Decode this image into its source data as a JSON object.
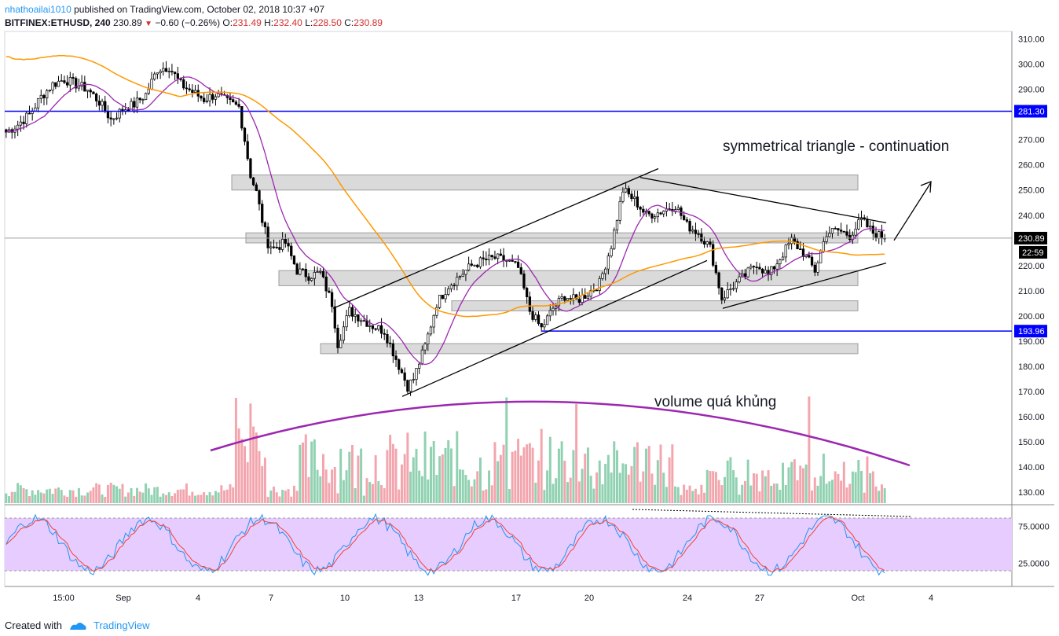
{
  "header": {
    "author": "nhathoailai1010",
    "published": "published on TradingView.com, October 02, 2018 10:37 +07",
    "symbol": "BITFINEX:ETHUSD, 240",
    "last": "230.89",
    "change": "−0.60 (−0.26%)",
    "o_label": "O:",
    "o": "231.49",
    "h_label": "H:",
    "h": "232.40",
    "l_label": "L:",
    "l": "228.50",
    "c_label": "C:",
    "c": "230.89"
  },
  "annotations": {
    "pattern": "symmetrical triangle - continuation",
    "volume_note": "volume quá khủng"
  },
  "footer": {
    "created_with": "Created with",
    "brand": "TradingView"
  },
  "colors": {
    "bull": "#ffffff",
    "bear": "#000000",
    "ma_fast": "#9c27b0",
    "ma_slow": "#ff9800",
    "level": "#0000ff",
    "zone": "#d3d3d3",
    "vol_up": "#8fd1b0",
    "vol_down": "#f3a5ad",
    "rsi_band": "#e6ccff",
    "k_line": "#2196f3",
    "d_line": "#f44336"
  },
  "chart_data": {
    "type": "candlestick",
    "timeframe": "240",
    "y_ticks": [
      "310.00",
      "300.00",
      "290.00",
      "280.00",
      "270.00",
      "260.00",
      "250.00",
      "240.00",
      "230.00",
      "220.00",
      "210.00",
      "200.00",
      "190.00",
      "180.00",
      "170.00",
      "160.00",
      "150.00",
      "140.00",
      "130.00"
    ],
    "y_range": [
      125,
      313
    ],
    "x_ticks": [
      "15:00",
      "Sep",
      "4",
      "7",
      "10",
      "13",
      "17",
      "20",
      "24",
      "27",
      "Oct",
      "4"
    ],
    "price_labels": {
      "level_high": "281.30",
      "last": "230.89",
      "countdown": "22:59",
      "level_low": "193.96"
    },
    "horizontal_levels": [
      281.3,
      193.96
    ],
    "close_anchors": [
      [
        0,
        273
      ],
      [
        4,
        276
      ],
      [
        8,
        280
      ],
      [
        12,
        287
      ],
      [
        16,
        292
      ],
      [
        20,
        294
      ],
      [
        24,
        292
      ],
      [
        28,
        290
      ],
      [
        32,
        285
      ],
      [
        36,
        278
      ],
      [
        40,
        282
      ],
      [
        44,
        284
      ],
      [
        48,
        288
      ],
      [
        52,
        298
      ],
      [
        56,
        299
      ],
      [
        60,
        292
      ],
      [
        64,
        289
      ],
      [
        68,
        286
      ],
      [
        72,
        288
      ],
      [
        76,
        285
      ],
      [
        80,
        283
      ],
      [
        82,
        270
      ],
      [
        84,
        256
      ],
      [
        86,
        249
      ],
      [
        88,
        238
      ],
      [
        90,
        229
      ],
      [
        92,
        227
      ],
      [
        96,
        229
      ],
      [
        100,
        218
      ],
      [
        104,
        216
      ],
      [
        108,
        217
      ],
      [
        112,
        205
      ],
      [
        114,
        189
      ],
      [
        118,
        202
      ],
      [
        122,
        199
      ],
      [
        126,
        196
      ],
      [
        130,
        194
      ],
      [
        134,
        183
      ],
      [
        138,
        172
      ],
      [
        140,
        175
      ],
      [
        144,
        188
      ],
      [
        148,
        205
      ],
      [
        152,
        212
      ],
      [
        156,
        216
      ],
      [
        160,
        220
      ],
      [
        164,
        222
      ],
      [
        168,
        223
      ],
      [
        172,
        222
      ],
      [
        176,
        219
      ],
      [
        180,
        202
      ],
      [
        184,
        195
      ],
      [
        188,
        203
      ],
      [
        192,
        208
      ],
      [
        196,
        206
      ],
      [
        200,
        209
      ],
      [
        204,
        213
      ],
      [
        208,
        228
      ],
      [
        212,
        250
      ],
      [
        216,
        246
      ],
      [
        220,
        240
      ],
      [
        224,
        241
      ],
      [
        228,
        243
      ],
      [
        230,
        244
      ],
      [
        234,
        236
      ],
      [
        238,
        233
      ],
      [
        242,
        227
      ],
      [
        246,
        207
      ],
      [
        250,
        212
      ],
      [
        254,
        216
      ],
      [
        258,
        221
      ],
      [
        262,
        216
      ],
      [
        266,
        223
      ],
      [
        270,
        230
      ],
      [
        274,
        225
      ],
      [
        278,
        218
      ],
      [
        282,
        233
      ],
      [
        286,
        234
      ],
      [
        290,
        232
      ],
      [
        294,
        238
      ],
      [
        298,
        233
      ],
      [
        302,
        230.89
      ]
    ],
    "n_bars": 303,
    "stoch_rsi": {
      "ticks": [
        "75.0000",
        "25.0000"
      ],
      "band": [
        20,
        80
      ]
    }
  }
}
